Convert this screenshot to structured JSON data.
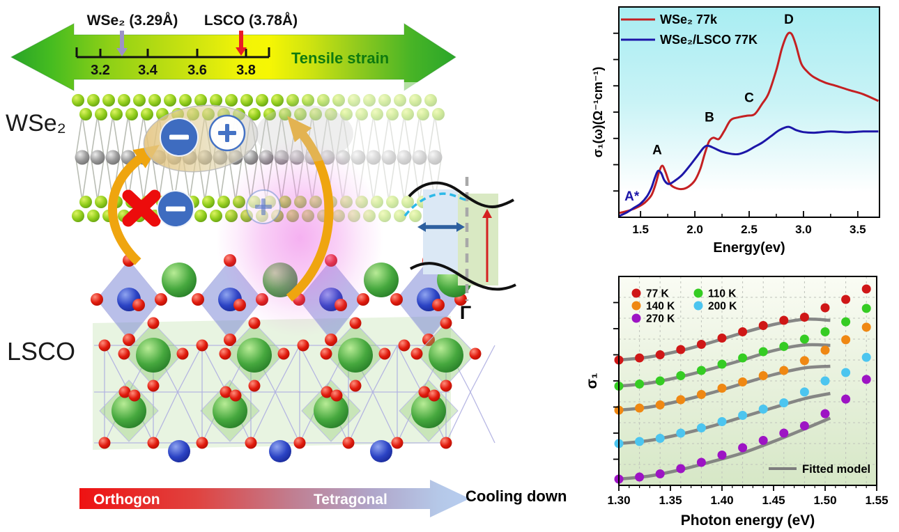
{
  "left_panel": {
    "strain_arrow": {
      "wse2": "WSe₂ (3.29Å)",
      "lsco": "LSCO (3.78Å)",
      "ticks": [
        "3.2",
        "3.4",
        "3.6",
        "3.8"
      ],
      "label": "Tensile strain"
    },
    "wse2_title": "WSe₂",
    "lsco_title": "LSCO",
    "band_diagram": {
      "gamma": "Γ"
    },
    "phase_arrow": {
      "left": "Orthogon",
      "right": "Tetragonal",
      "caption": "Cooling down"
    }
  },
  "chart_data": [
    {
      "id": "optical-conductivity",
      "type": "line",
      "xlabel": "Energy(ev)",
      "ylabel": "σ₁(ω)(Ω⁻¹cm⁻¹)",
      "xlim": [
        1.3,
        3.7
      ],
      "ylim": [
        0,
        1
      ],
      "xticks": [
        1.5,
        2.0,
        2.5,
        3.0,
        3.5
      ],
      "xtick_labels": [
        "1.5",
        "2.0",
        "2.5",
        "3.0",
        "3.5"
      ],
      "xminors": [
        1.75,
        2.25,
        2.75,
        3.25
      ],
      "background": [
        "#a8edf2",
        "#ffffff"
      ],
      "annotations": [
        {
          "text": "A*",
          "x": 1.42,
          "y": 0.08,
          "color": "#1c16a8"
        },
        {
          "text": "A",
          "x": 1.653,
          "y": 0.3,
          "color": "#000000"
        },
        {
          "text": "B",
          "x": 2.134,
          "y": 0.455,
          "color": "#000000"
        },
        {
          "text": "C",
          "x": 2.5,
          "y": 0.548,
          "color": "#000000"
        },
        {
          "text": "D",
          "x": 2.866,
          "y": 0.92,
          "color": "#000000"
        }
      ],
      "series": [
        {
          "name": "WSe₂ 77k",
          "color": "#c42022",
          "x": [
            1.3,
            1.4,
            1.48,
            1.54,
            1.6,
            1.64,
            1.67,
            1.7,
            1.73,
            1.77,
            1.82,
            1.88,
            1.94,
            2.0,
            2.05,
            2.09,
            2.13,
            2.17,
            2.22,
            2.27,
            2.33,
            2.4,
            2.48,
            2.55,
            2.62,
            2.68,
            2.75,
            2.8,
            2.85,
            2.89,
            2.93,
            2.98,
            3.04,
            3.1,
            3.2,
            3.3,
            3.42,
            3.55,
            3.69
          ],
          "y": [
            0.02,
            0.033,
            0.05,
            0.07,
            0.105,
            0.16,
            0.215,
            0.245,
            0.215,
            0.16,
            0.14,
            0.134,
            0.145,
            0.175,
            0.23,
            0.3,
            0.36,
            0.378,
            0.372,
            0.41,
            0.462,
            0.475,
            0.483,
            0.49,
            0.54,
            0.59,
            0.7,
            0.8,
            0.868,
            0.872,
            0.82,
            0.73,
            0.69,
            0.665,
            0.64,
            0.625,
            0.605,
            0.585,
            0.553
          ]
        },
        {
          "name": "WSe₂/LSCO 77K",
          "color": "#1c16a8",
          "x": [
            1.3,
            1.38,
            1.44,
            1.5,
            1.56,
            1.6,
            1.63,
            1.66,
            1.69,
            1.72,
            1.76,
            1.82,
            1.88,
            1.95,
            2.02,
            2.08,
            2.12,
            2.18,
            2.25,
            2.33,
            2.4,
            2.47,
            2.55,
            2.62,
            2.7,
            2.78,
            2.86,
            2.93,
            3.0,
            3.1,
            3.25,
            3.4,
            3.55,
            3.69
          ],
          "y": [
            0.005,
            0.025,
            0.045,
            0.065,
            0.1,
            0.14,
            0.185,
            0.22,
            0.21,
            0.175,
            0.158,
            0.175,
            0.2,
            0.243,
            0.29,
            0.33,
            0.34,
            0.328,
            0.312,
            0.302,
            0.3,
            0.312,
            0.335,
            0.355,
            0.385,
            0.415,
            0.43,
            0.415,
            0.405,
            0.402,
            0.408,
            0.404,
            0.408,
            0.408
          ]
        }
      ]
    },
    {
      "id": "sigma1-photon-energy",
      "type": "scatter",
      "xlabel": "Photon energy (eV)",
      "ylabel": "σ₁",
      "xlim": [
        1.3,
        1.55
      ],
      "ylim": [
        0,
        1
      ],
      "xticks": [
        1.3,
        1.35,
        1.4,
        1.45,
        1.5,
        1.55
      ],
      "xtick_labels": [
        "1.30",
        "1.35",
        "1.40",
        "1.45",
        "1.50",
        "1.55"
      ],
      "background": [
        "#fafcf4",
        "#d6e7c6"
      ],
      "grid": true,
      "x": [
        1.3,
        1.32,
        1.34,
        1.36,
        1.38,
        1.4,
        1.42,
        1.44,
        1.46,
        1.48,
        1.5,
        1.52,
        1.54
      ],
      "series": [
        {
          "name": "77 K",
          "color": "#cf1717",
          "values": [
            0.6,
            0.61,
            0.625,
            0.65,
            0.675,
            0.705,
            0.735,
            0.765,
            0.79,
            0.805,
            0.85,
            0.89,
            0.94
          ]
        },
        {
          "name": "140 K",
          "color": "#ef8813",
          "values": [
            0.36,
            0.37,
            0.385,
            0.41,
            0.435,
            0.465,
            0.495,
            0.525,
            0.55,
            0.597,
            0.647,
            0.697,
            0.757
          ]
        },
        {
          "name": "270 K",
          "color": "#9d14c4",
          "values": [
            0.03,
            0.04,
            0.055,
            0.08,
            0.11,
            0.145,
            0.18,
            0.215,
            0.25,
            0.285,
            0.343,
            0.413,
            0.507
          ]
        },
        {
          "name": "110 K",
          "color": "#35cc23",
          "values": [
            0.475,
            0.485,
            0.5,
            0.525,
            0.55,
            0.58,
            0.61,
            0.64,
            0.665,
            0.7,
            0.735,
            0.783,
            0.847
          ]
        },
        {
          "name": "200 K",
          "color": "#4cc5ef",
          "values": [
            0.2,
            0.21,
            0.225,
            0.25,
            0.275,
            0.305,
            0.335,
            0.365,
            0.395,
            0.447,
            0.5,
            0.54,
            0.613
          ]
        }
      ],
      "fit_x": [
        1.3,
        1.33,
        1.36,
        1.39,
        1.42,
        1.45,
        1.48,
        1.505
      ],
      "fits": [
        [
          0.6,
          0.615,
          0.645,
          0.685,
          0.73,
          0.77,
          0.795,
          0.79
        ],
        [
          0.36,
          0.375,
          0.405,
          0.443,
          0.487,
          0.53,
          0.562,
          0.57
        ],
        [
          0.03,
          0.045,
          0.075,
          0.113,
          0.155,
          0.21,
          0.27,
          0.322
        ],
        [
          0.475,
          0.49,
          0.52,
          0.558,
          0.6,
          0.645,
          0.672,
          0.67
        ],
        [
          0.2,
          0.215,
          0.245,
          0.283,
          0.327,
          0.372,
          0.415,
          0.44
        ]
      ],
      "fit_color": "#7d7d7d",
      "fit_label": "Fitted model"
    }
  ]
}
